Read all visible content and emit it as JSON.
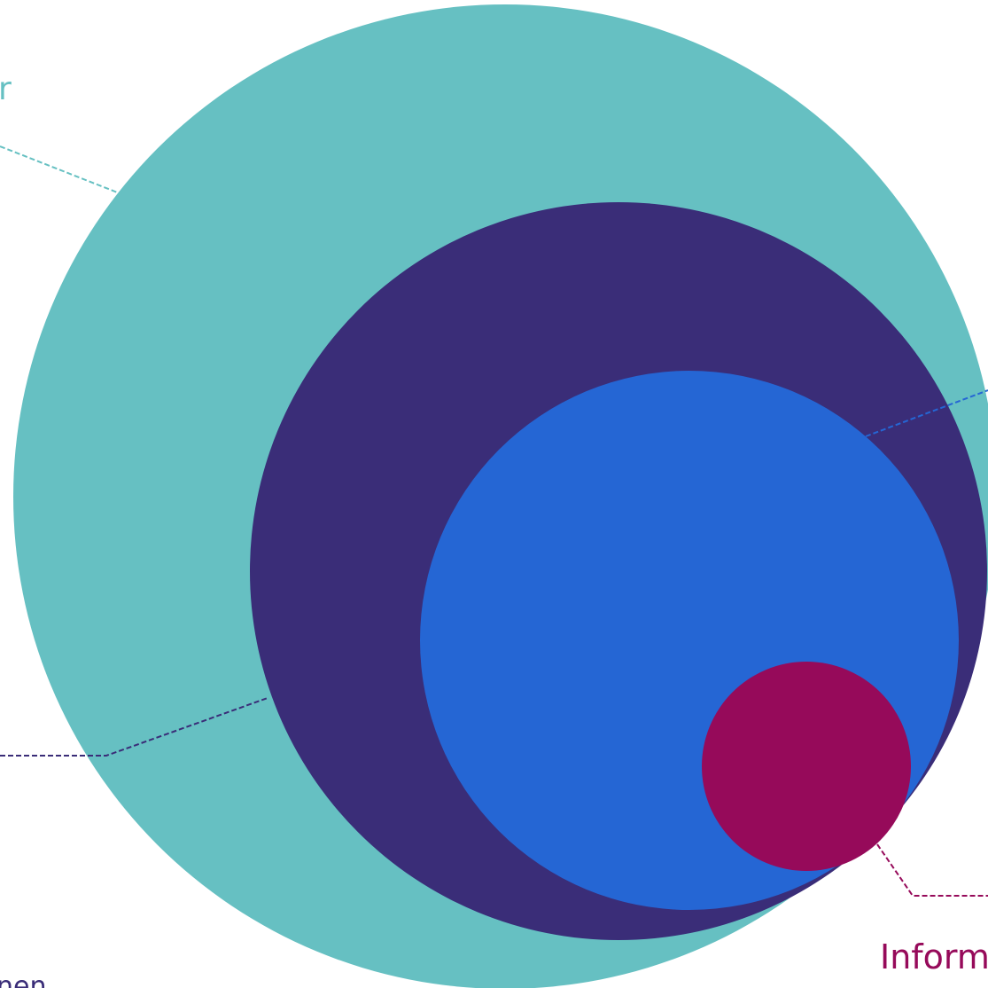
{
  "labels": [
    {
      "text": "r",
      "color": "#66c0c2"
    },
    {
      "text": "nen",
      "color": "#3a2d78"
    },
    {
      "text": "Inform",
      "color": "#960a5a"
    }
  ]
}
